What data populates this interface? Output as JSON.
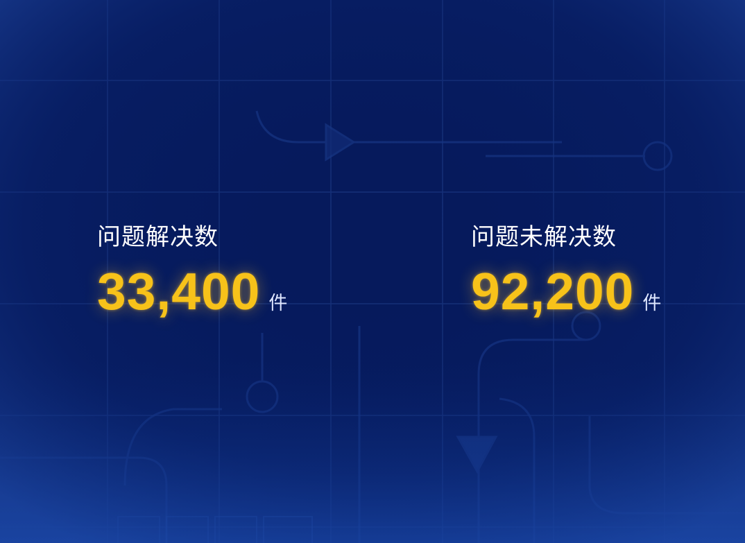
{
  "stats": [
    {
      "label": "问题解决数",
      "value": "33,400",
      "unit": "件"
    },
    {
      "label": "问题未解决数",
      "value": "92,200",
      "unit": "件"
    }
  ],
  "colors": {
    "background": "#081d5c",
    "value": "#f7c21a",
    "label": "#ffffff",
    "grid": "#1d3a86"
  }
}
